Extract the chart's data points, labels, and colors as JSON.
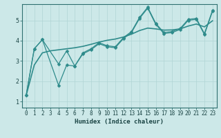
{
  "title": "",
  "xlabel": "Humidex (Indice chaleur)",
  "bg_color": "#cce8e8",
  "line_color": "#2e8b8b",
  "grid_color": "#b0d4d4",
  "xlim": [
    -0.5,
    23.5
  ],
  "ylim": [
    0.7,
    5.8
  ],
  "yticks": [
    1,
    2,
    3,
    4,
    5
  ],
  "xticks": [
    0,
    1,
    2,
    3,
    4,
    5,
    6,
    7,
    8,
    9,
    10,
    11,
    12,
    13,
    14,
    15,
    16,
    17,
    18,
    19,
    20,
    21,
    22,
    23
  ],
  "smooth_x": [
    0,
    1,
    2,
    3,
    4,
    5,
    6,
    7,
    8,
    9,
    10,
    11,
    12,
    13,
    14,
    15,
    16,
    17,
    18,
    19,
    20,
    21,
    22,
    23
  ],
  "smooth_y": [
    1.3,
    2.8,
    3.4,
    3.5,
    3.55,
    3.6,
    3.65,
    3.72,
    3.82,
    3.93,
    4.02,
    4.08,
    4.18,
    4.32,
    4.5,
    4.62,
    4.58,
    4.52,
    4.53,
    4.58,
    4.72,
    4.82,
    4.68,
    4.98
  ],
  "line_upper_x": [
    0,
    1,
    2,
    4,
    5,
    6,
    7,
    8,
    9,
    10,
    11,
    12,
    13,
    14,
    15,
    16,
    17,
    18,
    19,
    20,
    21,
    22,
    23
  ],
  "line_upper_y": [
    1.3,
    3.6,
    4.05,
    2.85,
    3.5,
    2.75,
    3.4,
    3.6,
    3.9,
    3.75,
    3.7,
    4.15,
    4.45,
    5.15,
    5.65,
    4.85,
    4.4,
    4.45,
    4.6,
    5.05,
    5.1,
    4.35,
    5.5
  ],
  "line_lower_x": [
    0,
    1,
    2,
    4,
    5,
    6,
    7,
    8,
    9,
    10,
    11,
    12,
    13,
    14,
    15,
    16,
    17,
    18,
    19,
    20,
    21,
    22,
    23
  ],
  "line_lower_y": [
    1.3,
    3.6,
    4.05,
    1.8,
    2.8,
    2.75,
    3.35,
    3.55,
    3.85,
    3.7,
    3.65,
    4.1,
    4.4,
    5.1,
    5.6,
    4.8,
    4.35,
    4.4,
    4.55,
    5.0,
    5.05,
    4.3,
    5.45
  ],
  "xlabel_fontsize": 6.5,
  "tick_fontsize": 5.5,
  "linewidth": 0.9,
  "markersize": 2.5
}
